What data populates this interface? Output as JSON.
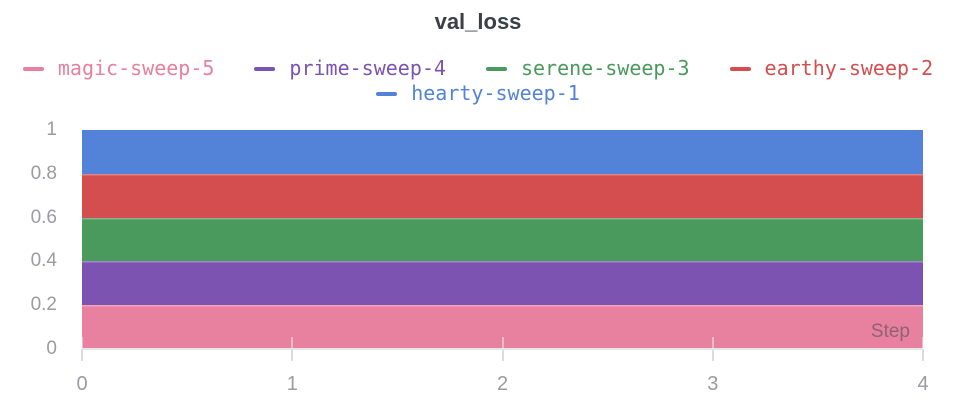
{
  "chart_data": {
    "type": "area",
    "title": "val_loss",
    "xlabel": "Step",
    "ylabel": "",
    "xlim": [
      0,
      4
    ],
    "ylim": [
      0,
      1
    ],
    "grid": "short light-gray tick marks at x ticks only, no full gridlines",
    "legend_position": "top, two centered rows",
    "xticks": [
      {
        "v": 0,
        "label": "0"
      },
      {
        "v": 1,
        "label": "1"
      },
      {
        "v": 2,
        "label": "2"
      },
      {
        "v": 3,
        "label": "3"
      },
      {
        "v": 4,
        "label": "4"
      }
    ],
    "yticks": [
      {
        "v": 0,
        "label": "0"
      },
      {
        "v": 0.2,
        "label": "0.2"
      },
      {
        "v": 0.4,
        "label": "0.4"
      },
      {
        "v": 0.6,
        "label": "0.6"
      },
      {
        "v": 0.8,
        "label": "0.8"
      },
      {
        "v": 1,
        "label": "1"
      }
    ],
    "series": [
      {
        "name": "magic-sweep-5",
        "color": "#e8809f",
        "x": [
          0,
          4
        ],
        "values": [
          0.2,
          0.2
        ],
        "visible_band": [
          0.0,
          0.2
        ]
      },
      {
        "name": "prime-sweep-4",
        "color": "#7d53b2",
        "x": [
          0,
          4
        ],
        "values": [
          0.4,
          0.4
        ],
        "visible_band": [
          0.2,
          0.4
        ]
      },
      {
        "name": "serene-sweep-3",
        "color": "#4a9a5e",
        "x": [
          0,
          4
        ],
        "values": [
          0.6,
          0.6
        ],
        "visible_band": [
          0.4,
          0.6
        ]
      },
      {
        "name": "earthy-sweep-2",
        "color": "#d44e50",
        "x": [
          0,
          4
        ],
        "values": [
          0.8,
          0.8
        ],
        "visible_band": [
          0.6,
          0.8
        ]
      },
      {
        "name": "hearty-sweep-1",
        "color": "#5383d8",
        "x": [
          0,
          4
        ],
        "values": [
          1.0,
          1.0
        ],
        "visible_band": [
          0.8,
          1.0
        ]
      }
    ],
    "colors": {
      "title_text": "#3a4046",
      "axis_text": "#9b9ca2",
      "axis_line": "#e6e6ea",
      "tick_mark": "#dcdce0",
      "background": "#ffffff"
    }
  }
}
